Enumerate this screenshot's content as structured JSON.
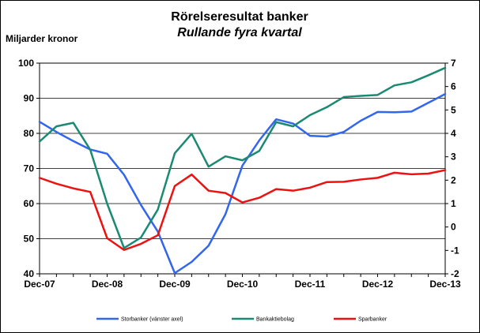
{
  "chart_data": {
    "type": "line",
    "title": "Rörelseresultat banker",
    "subtitle": "Rullande fyra kvartal",
    "ylabel_left": "Miljarder kronor",
    "left_axis": {
      "min": 40,
      "max": 100,
      "ticks": [
        "40",
        "50",
        "60",
        "70",
        "80",
        "90",
        "100"
      ]
    },
    "right_axis": {
      "min": -2,
      "max": 7,
      "ticks": [
        "-2",
        "-1",
        "0",
        "1",
        "2",
        "3",
        "4",
        "5",
        "6",
        "7"
      ]
    },
    "x_tick_labels": [
      "Dec-07",
      "Dec-08",
      "Dec-09",
      "Dec-10",
      "Dec-11",
      "Dec-12",
      "Dec-13"
    ],
    "x": [
      "Dec-07",
      "Mar-08",
      "Jun-08",
      "Sep-08",
      "Dec-08",
      "Mar-09",
      "Jun-09",
      "Sep-09",
      "Dec-09",
      "Mar-10",
      "Jun-10",
      "Sep-10",
      "Dec-10",
      "Mar-11",
      "Jun-11",
      "Sep-11",
      "Dec-11",
      "Mar-12",
      "Jun-12",
      "Sep-12",
      "Dec-12",
      "Mar-13",
      "Jun-13",
      "Sep-13",
      "Dec-13"
    ],
    "grid": true,
    "legend_position": "bottom",
    "series": [
      {
        "name": "Storbanker (vänster axel)",
        "axis": "left",
        "color": "#3366ee",
        "values": [
          83.3,
          80.4,
          77.8,
          75.4,
          74.2,
          68.2,
          59.6,
          52.0,
          40.2,
          43.4,
          48.0,
          57.0,
          70.8,
          78.0,
          84.0,
          82.8,
          79.3,
          79.1,
          80.4,
          83.6,
          86.1,
          86.0,
          86.2,
          88.7,
          91.2
        ]
      },
      {
        "name": "Bankaktiebolag",
        "axis": "right",
        "color": "#1a8a72",
        "values": [
          3.65,
          4.3,
          4.45,
          3.3,
          1.0,
          -0.9,
          -0.45,
          0.75,
          3.15,
          3.98,
          2.58,
          3.02,
          2.85,
          3.25,
          4.48,
          4.3,
          4.78,
          5.12,
          5.55,
          5.6,
          5.64,
          6.05,
          6.18,
          6.48,
          6.8
        ]
      },
      {
        "name": "Sparbanker",
        "axis": "right",
        "color": "#ee1111",
        "values": [
          2.1,
          1.85,
          1.65,
          1.5,
          -0.48,
          -0.98,
          -0.72,
          -0.35,
          1.75,
          2.24,
          1.55,
          1.45,
          1.05,
          1.25,
          1.62,
          1.55,
          1.68,
          1.92,
          1.93,
          2.03,
          2.1,
          2.32,
          2.25,
          2.28,
          2.43
        ]
      }
    ]
  }
}
